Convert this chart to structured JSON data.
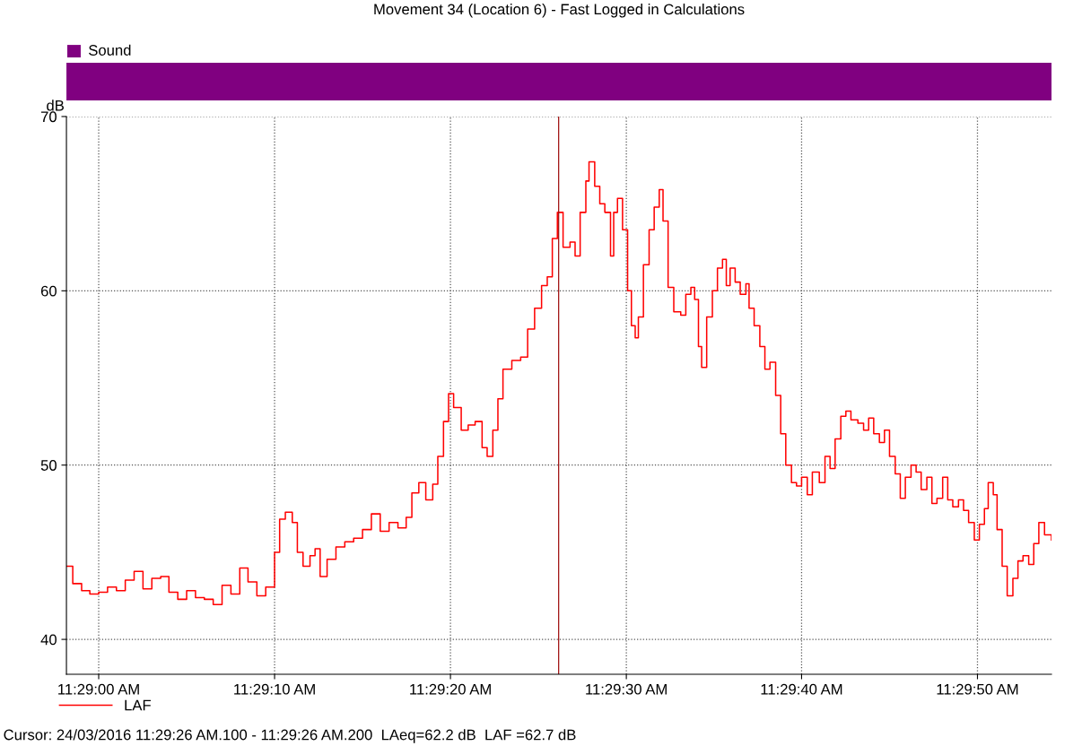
{
  "chart_data": {
    "type": "step",
    "title": "Movement 34 (Location 6) - Fast Logged in Calculations",
    "ylabel": "dB",
    "xlim": [
      11.48282,
      11.49839
    ],
    "ylim": [
      38,
      70
    ],
    "xticks": [
      {
        "value": 11.48333,
        "label": "11:29:00 AM"
      },
      {
        "value": 11.48611,
        "label": "11:29:10 AM"
      },
      {
        "value": 11.48889,
        "label": "11:29:20 AM"
      },
      {
        "value": 11.49167,
        "label": "11:29:30 AM"
      },
      {
        "value": 11.49444,
        "label": "11:29:40 AM"
      },
      {
        "value": 11.49722,
        "label": "11:29:50 AM"
      }
    ],
    "yticks": [
      40,
      50,
      60,
      70
    ],
    "grid": true,
    "legend": "bottom left",
    "ref_lines": [
      {
        "axis": "x",
        "value": 11.4906,
        "color": "#a01010"
      }
    ],
    "annotations": [
      "Sound",
      "Cursor: 24/03/2016 11:29:26 AM.100 - 11:29:26 AM.200  LAeq=62.2 dB  LAF =62.7 dB"
    ],
    "series": [
      {
        "name": "LAF",
        "color": "#ff0000",
        "x": [
          11.48283,
          11.48292,
          11.48306,
          11.48319,
          11.48333,
          11.48347,
          11.48361,
          11.48375,
          11.48389,
          11.48403,
          11.48417,
          11.48431,
          11.48444,
          11.48458,
          11.48472,
          11.48486,
          11.485,
          11.48514,
          11.48528,
          11.48542,
          11.48556,
          11.48569,
          11.48583,
          11.48597,
          11.48611,
          11.48619,
          11.48628,
          11.48639,
          11.48647,
          11.48656,
          11.48667,
          11.48675,
          11.48683,
          11.48694,
          11.48708,
          11.48722,
          11.48736,
          11.4875,
          11.48764,
          11.48778,
          11.48792,
          11.48806,
          11.48819,
          11.48828,
          11.48839,
          11.4885,
          11.48861,
          11.48869,
          11.48878,
          11.48886,
          11.48894,
          11.48906,
          11.48917,
          11.48928,
          11.48939,
          11.48947,
          11.48956,
          11.48964,
          11.48972,
          11.48986,
          11.49,
          11.49011,
          11.49022,
          11.49033,
          11.49042,
          11.4905,
          11.49058,
          11.49067,
          11.49078,
          11.49086,
          11.49094,
          11.49103,
          11.49108,
          11.49117,
          11.49125,
          11.49133,
          11.49142,
          11.49147,
          11.49153,
          11.49161,
          11.49169,
          11.49175,
          11.49181,
          11.49186,
          11.49194,
          11.49203,
          11.49211,
          11.49219,
          11.49225,
          11.49233,
          11.49242,
          11.49253,
          11.49261,
          11.49269,
          11.49275,
          11.49281,
          11.49286,
          11.49294,
          11.49303,
          11.49311,
          11.49319,
          11.49325,
          11.49331,
          11.49339,
          11.49347,
          11.49356,
          11.49361,
          11.49369,
          11.49378,
          11.49386,
          11.49394,
          11.49403,
          11.49411,
          11.49419,
          11.49428,
          11.49436,
          11.49444,
          11.49453,
          11.49461,
          11.49472,
          11.49481,
          11.49489,
          11.49497,
          11.49506,
          11.49514,
          11.49522,
          11.49533,
          11.49542,
          11.4955,
          11.49558,
          11.49567,
          11.49575,
          11.49583,
          11.49592,
          11.496,
          11.49608,
          11.49617,
          11.49625,
          11.49633,
          11.49642,
          11.4965,
          11.49658,
          11.49667,
          11.49675,
          11.49683,
          11.49692,
          11.497,
          11.49708,
          11.49717,
          11.49725,
          11.49733,
          11.49739,
          11.49747,
          11.49753,
          11.49761,
          11.49769,
          11.49778,
          11.49786,
          11.49794,
          11.49803,
          11.49811,
          11.49819,
          11.49828,
          11.49839
        ],
        "values": [
          44.2,
          43.2,
          42.8,
          42.6,
          42.7,
          43.0,
          42.8,
          43.4,
          43.9,
          42.9,
          43.5,
          43.6,
          42.7,
          42.3,
          42.8,
          42.4,
          42.3,
          42.0,
          43.1,
          42.6,
          44.1,
          43.3,
          42.5,
          43.0,
          45.0,
          46.9,
          47.3,
          46.7,
          45.0,
          44.2,
          44.8,
          45.2,
          43.6,
          44.6,
          45.3,
          45.6,
          45.8,
          46.3,
          47.2,
          46.2,
          46.7,
          46.4,
          47.0,
          48.4,
          49.0,
          48.0,
          48.9,
          50.5,
          52.5,
          54.1,
          53.3,
          52.0,
          52.3,
          52.5,
          51.0,
          50.5,
          52.0,
          53.8,
          55.5,
          56.0,
          56.2,
          57.8,
          59.0,
          60.3,
          60.8,
          63.0,
          64.5,
          62.5,
          62.8,
          62.0,
          64.5,
          66.3,
          67.4,
          66.0,
          65.0,
          64.5,
          62.0,
          64.5,
          65.3,
          63.5,
          60.0,
          58.0,
          57.3,
          58.5,
          61.5,
          63.5,
          64.8,
          65.8,
          64.0,
          60.2,
          58.8,
          58.6,
          59.8,
          60.2,
          59.5,
          56.8,
          55.6,
          58.5,
          60.0,
          61.3,
          61.8,
          60.3,
          61.3,
          60.5,
          59.8,
          60.4,
          59.0,
          58.0,
          56.8,
          55.5,
          55.9,
          54.0,
          51.8,
          50.0,
          49.0,
          48.8,
          49.3,
          48.3,
          49.6,
          49.0,
          50.5,
          49.8,
          51.5,
          52.8,
          53.1,
          52.6,
          52.4,
          52.0,
          52.7,
          51.8,
          51.3,
          52.0,
          50.5,
          49.5,
          48.1,
          49.3,
          50.0,
          49.6,
          48.6,
          49.3,
          47.8,
          48.1,
          49.3,
          48.0,
          47.6,
          48.0,
          47.4,
          46.7,
          45.7,
          46.6,
          47.5,
          49.0,
          48.3,
          46.3,
          44.2,
          42.5,
          43.5,
          44.5,
          44.8,
          44.3,
          45.5,
          46.7,
          46.0,
          45.7
        ]
      }
    ]
  }
}
